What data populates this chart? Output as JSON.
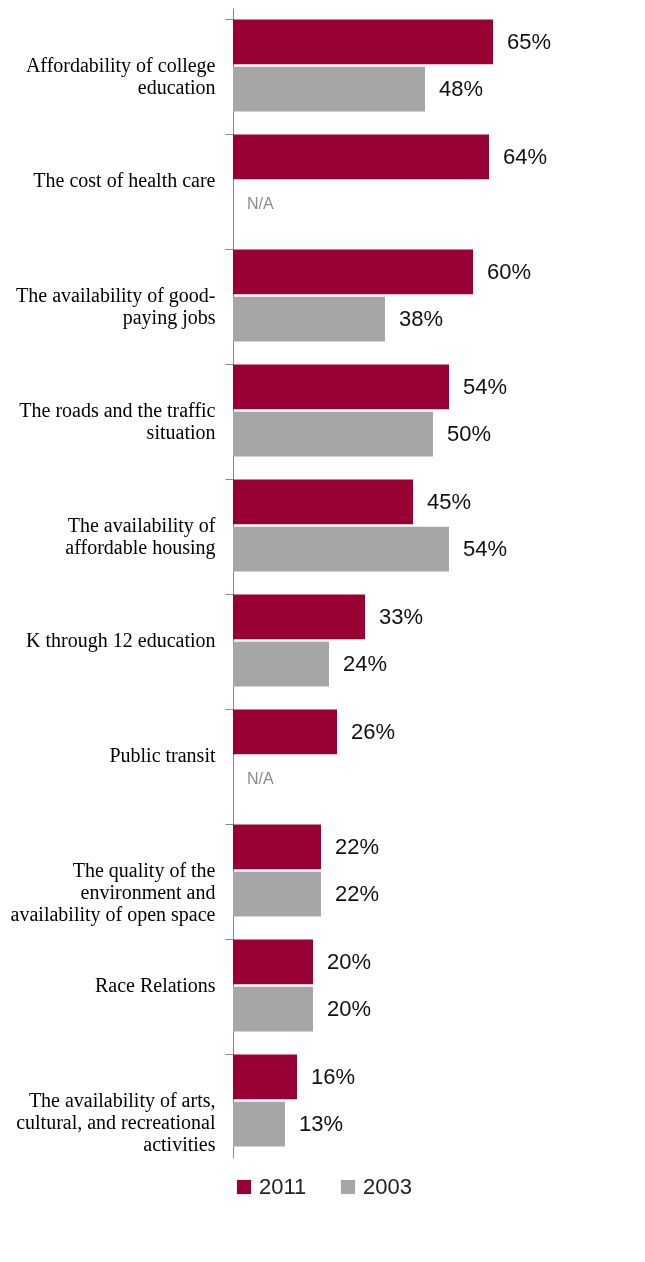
{
  "chart_data": {
    "type": "bar",
    "orientation": "horizontal",
    "categories": [
      "Affordability of college education",
      "The cost of health care",
      "The availability of good-paying jobs",
      "The roads and the traffic situation",
      "The availability of affordable housing",
      "K through 12 education",
      "Public transit",
      "The quality of the environment and availability of open space",
      "Race Relations",
      "The availability of arts, cultural, and recreational activities"
    ],
    "series": [
      {
        "name": "2011",
        "color": "#990033",
        "values": [
          65,
          64,
          60,
          54,
          45,
          33,
          26,
          22,
          20,
          16
        ],
        "value_labels": [
          "65%",
          "64%",
          "60%",
          "54%",
          "45%",
          "33%",
          "26%",
          "22%",
          "20%",
          "16%"
        ]
      },
      {
        "name": "2003",
        "color": "#a6a6a6",
        "values": [
          48,
          null,
          38,
          50,
          54,
          24,
          null,
          22,
          20,
          13
        ],
        "value_labels": [
          "48%",
          "N/A",
          "38%",
          "50%",
          "54%",
          "24%",
          "N/A",
          "22%",
          "20%",
          "13%"
        ]
      }
    ],
    "grid": false,
    "legend": "bottom"
  }
}
